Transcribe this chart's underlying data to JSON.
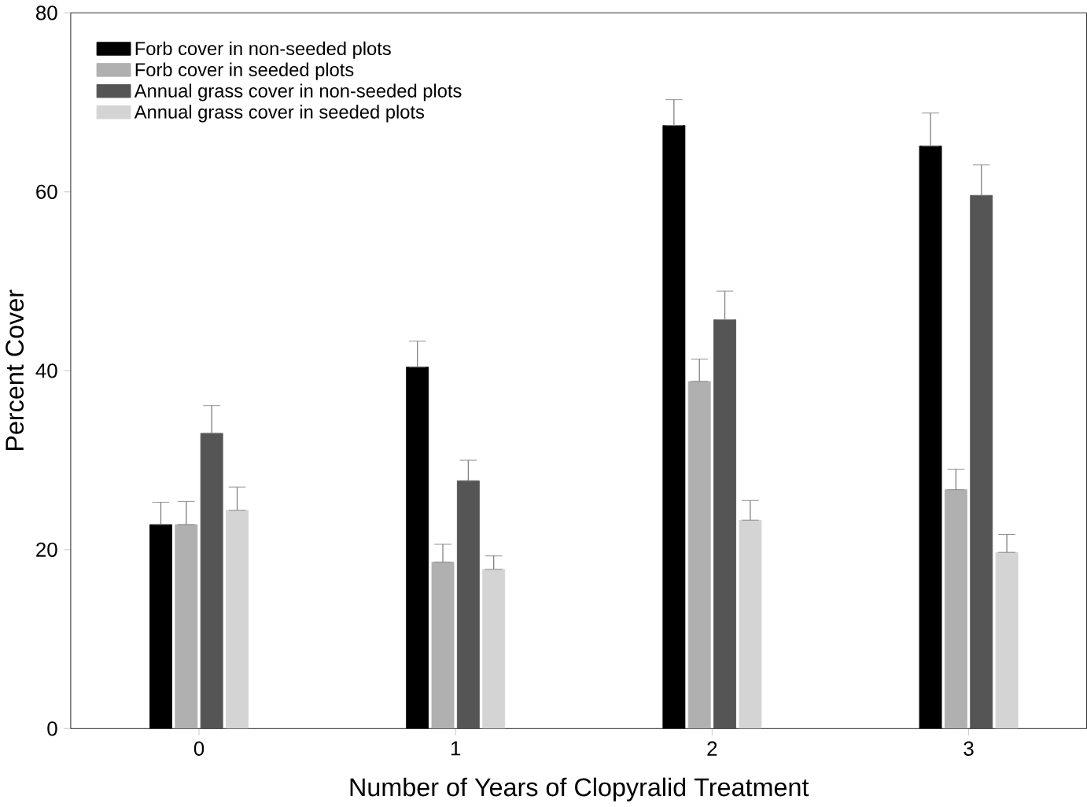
{
  "chart_data": {
    "type": "bar",
    "xlabel": "Number of Years of Clopyralid Treatment",
    "ylabel": "Percent Cover",
    "categories": [
      "0",
      "1",
      "2",
      "3"
    ],
    "series": [
      {
        "name": "Forb cover in non-seeded plots",
        "color": "#000000",
        "values": [
          22.8,
          40.4,
          67.4,
          65.1
        ],
        "errors": [
          [
            22.8,
            25.3
          ],
          [
            40.4,
            43.3
          ],
          [
            67.4,
            70.3
          ],
          [
            65.1,
            68.8
          ]
        ]
      },
      {
        "name": "Forb cover in seeded plots",
        "color": "#b0b0b0",
        "values": [
          22.8,
          18.6,
          38.8,
          26.7
        ],
        "errors": [
          [
            22.8,
            25.4
          ],
          [
            18.6,
            20.6
          ],
          [
            38.8,
            41.3
          ],
          [
            26.7,
            29.0
          ]
        ]
      },
      {
        "name": "Annual grass cover in non-seeded plots",
        "color": "#555555",
        "values": [
          33.0,
          27.7,
          45.7,
          59.6
        ],
        "errors": [
          [
            33.0,
            36.1
          ],
          [
            27.7,
            30.0
          ],
          [
            45.7,
            48.9
          ],
          [
            59.6,
            63.0
          ]
        ]
      },
      {
        "name": "Annual grass cover in seeded plots",
        "color": "#d4d4d4",
        "values": [
          24.4,
          17.8,
          23.3,
          19.7
        ],
        "errors": [
          [
            24.4,
            27.0
          ],
          [
            17.8,
            19.3
          ],
          [
            23.3,
            25.5
          ],
          [
            19.7,
            21.7
          ]
        ]
      }
    ],
    "ylim": [
      0,
      80
    ],
    "yticks": [
      0,
      20,
      40,
      60,
      80
    ],
    "grid": false,
    "legend": "top left"
  }
}
